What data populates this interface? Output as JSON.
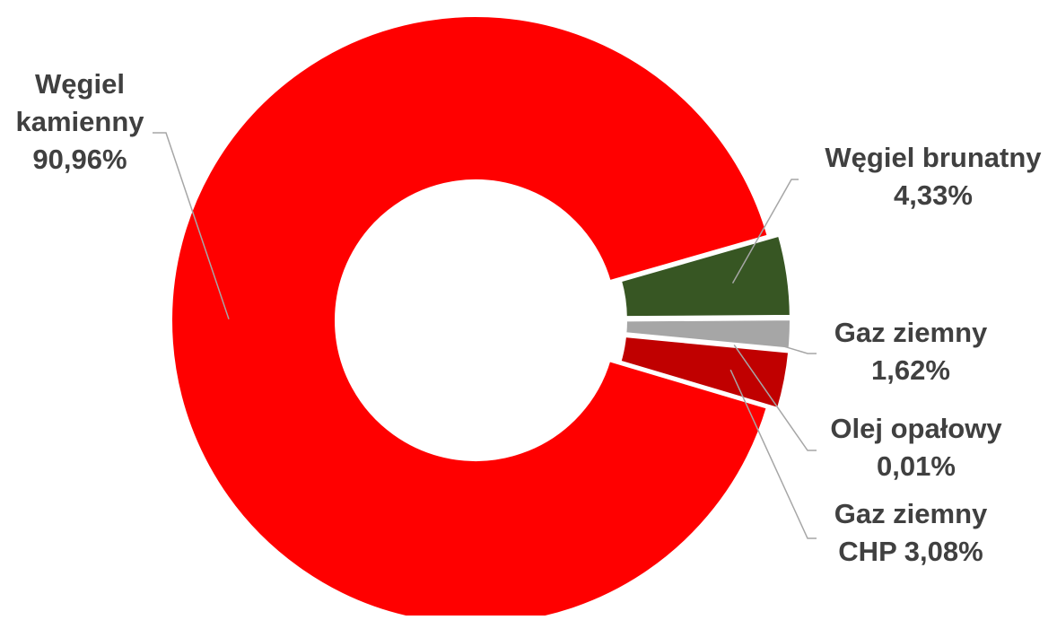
{
  "chart_data": {
    "type": "pie",
    "donut": true,
    "title": "",
    "slices": [
      {
        "name": "Węgiel brunatny",
        "value": 4.33,
        "label_lines": [
          "Węgiel brunatny",
          "4,33%"
        ],
        "color": "#375623"
      },
      {
        "name": "Gaz ziemny",
        "value": 1.62,
        "label_lines": [
          "Gaz ziemny",
          "1,62%"
        ],
        "color": "#A6A6A6"
      },
      {
        "name": "Olej opałowy",
        "value": 0.01,
        "label_lines": [
          "Olej opałowy",
          "0,01%"
        ],
        "color": "#808080"
      },
      {
        "name": "Gaz ziemny CHP",
        "value": 3.08,
        "label_lines": [
          "Gaz ziemny",
          "CHP 3,08%"
        ],
        "color": "#C00000"
      },
      {
        "name": "Węgiel kamienny",
        "value": 90.96,
        "label_lines": [
          "Węgiel",
          "kamienny",
          "90,96%"
        ],
        "color": "#FF0000"
      }
    ],
    "legend": "none",
    "separator_color": "#FFFFFF",
    "leader_line_color": "#A6A6A6"
  }
}
